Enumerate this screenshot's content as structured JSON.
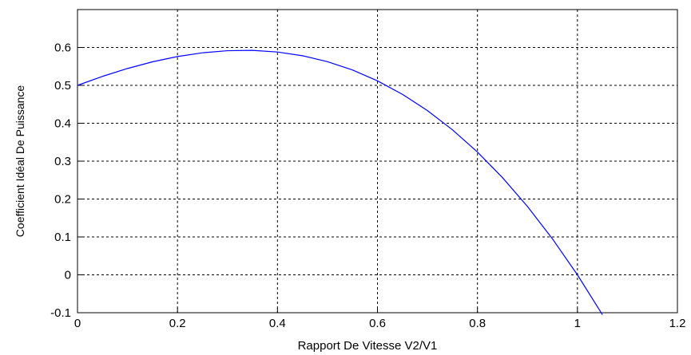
{
  "chart_data": {
    "type": "line",
    "xlabel": "Rapport De Vitesse V2/V1",
    "ylabel": "Coefficient Idéal De Puissance",
    "x": [
      0,
      0.05,
      0.1,
      0.15,
      0.2,
      0.25,
      0.3,
      0.35,
      0.4,
      0.45,
      0.5,
      0.55,
      0.6,
      0.65,
      0.7,
      0.75,
      0.8,
      0.85,
      0.9,
      0.95,
      1.0,
      1.05
    ],
    "series": [
      {
        "color": "#0000ff",
        "values": [
          0.5,
          0.5237,
          0.5445,
          0.5621,
          0.576,
          0.5859,
          0.5915,
          0.5923,
          0.588,
          0.5782,
          0.5625,
          0.5406,
          0.512,
          0.4764,
          0.4335,
          0.3828,
          0.324,
          0.2567,
          0.1805,
          0.0951,
          0,
          -0.1051
        ]
      }
    ],
    "xlim": [
      0,
      1.2
    ],
    "xticks": [
      0,
      0.2,
      0.4,
      0.6,
      0.8,
      1,
      1.2
    ],
    "ylim": [
      -0.1,
      0.7
    ],
    "yticks": [
      -0.1,
      0,
      0.1,
      0.2,
      0.3,
      0.4,
      0.5,
      0.6
    ],
    "grid": true
  }
}
